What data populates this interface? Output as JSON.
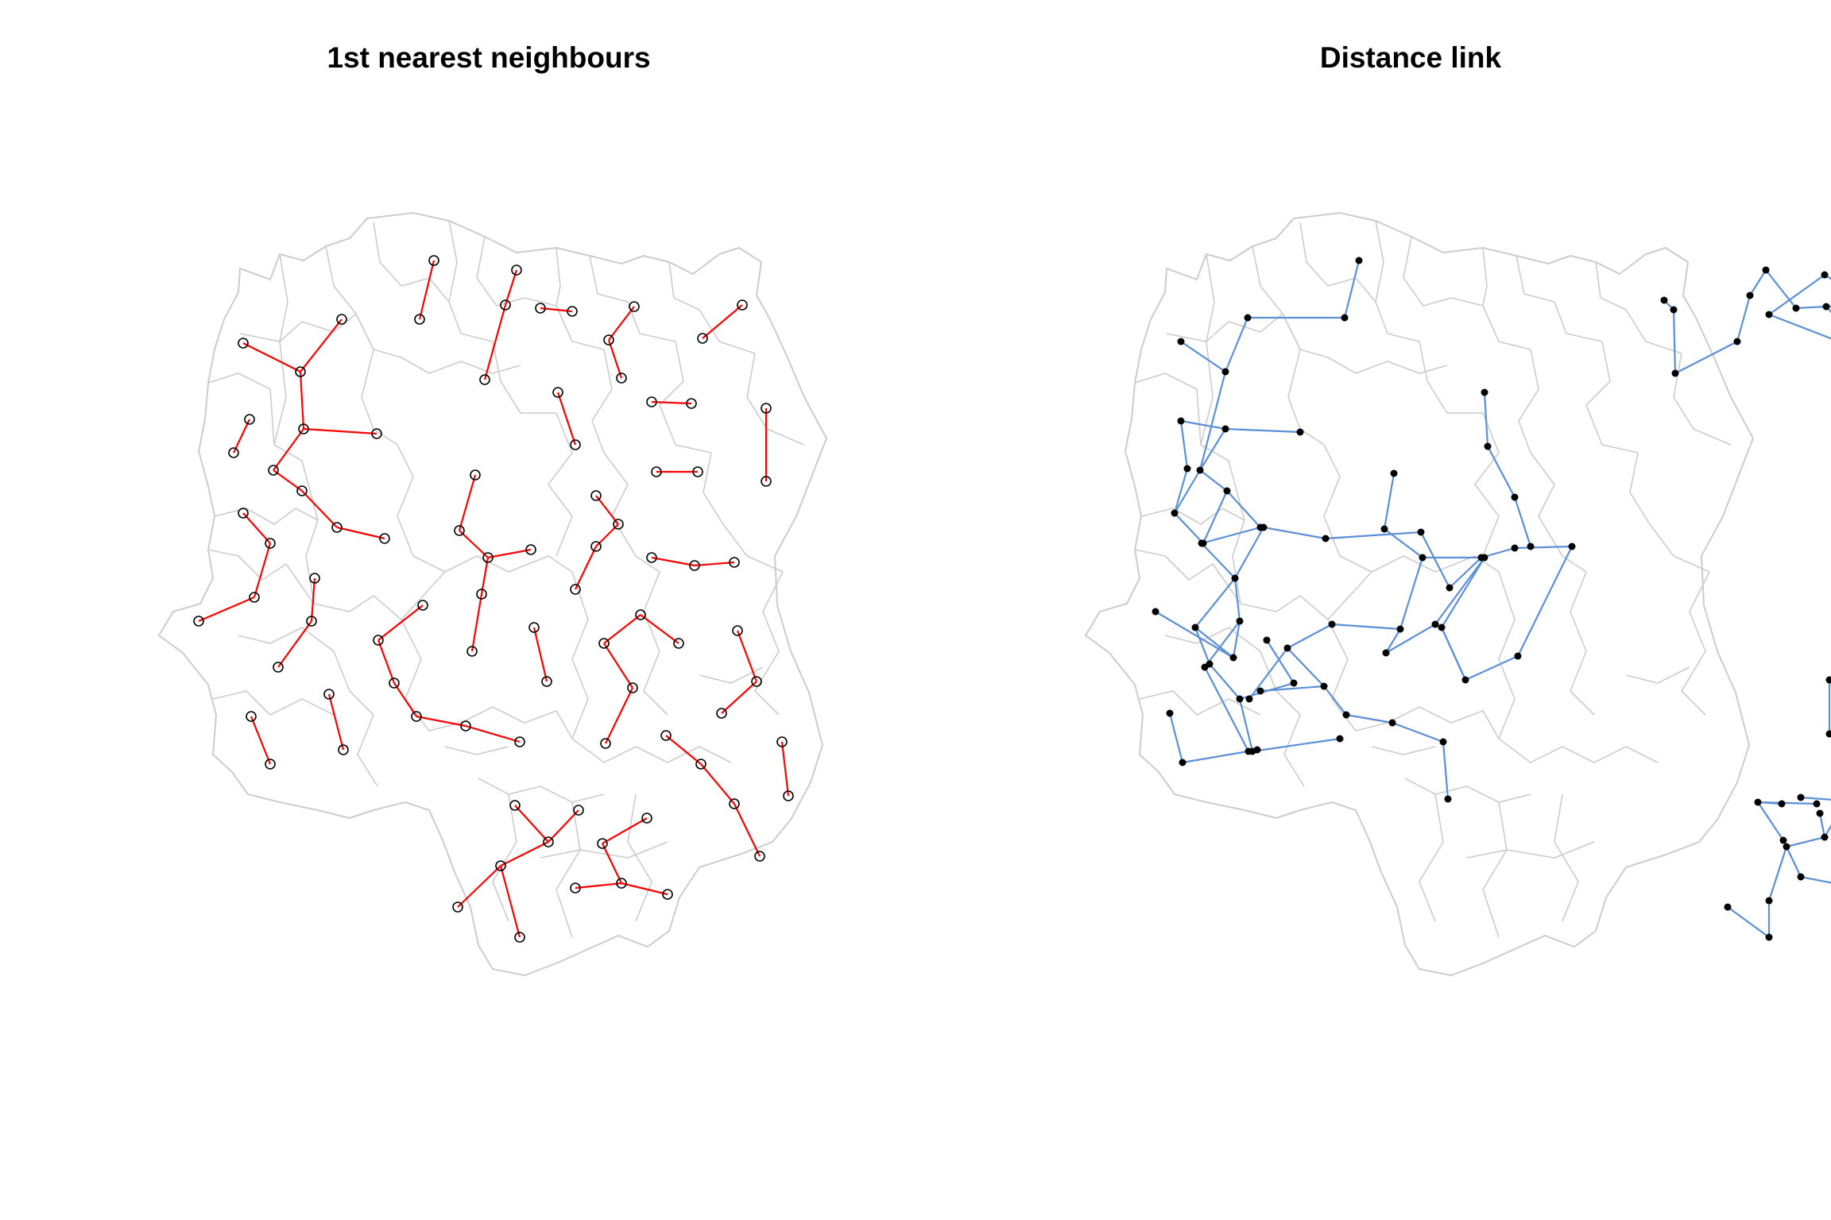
{
  "panels": [
    {
      "title": "1st nearest neighbours",
      "link_color": "#ff0000",
      "point_style": "open-circle"
    },
    {
      "title": "Distance link",
      "link_color": "#5b8fd6",
      "point_style": "filled-dot"
    }
  ],
  "boundary_color": "#cccccc"
}
